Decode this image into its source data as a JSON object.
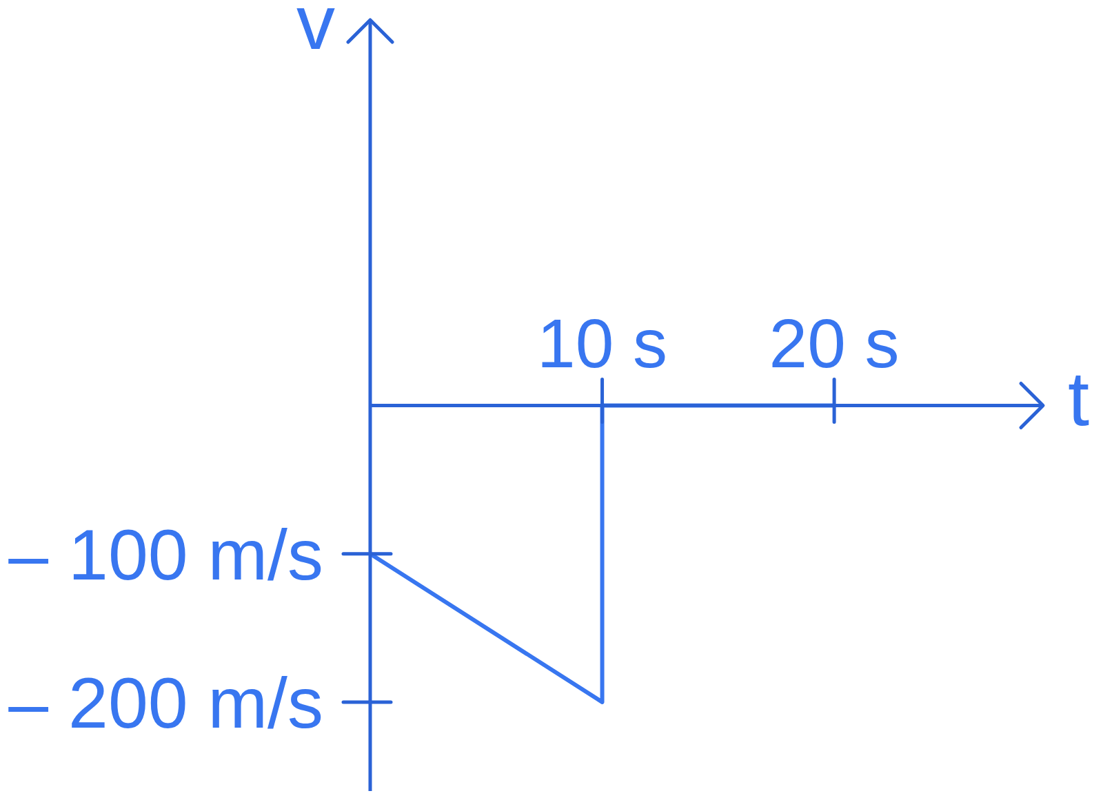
{
  "chart_data": {
    "type": "line",
    "xlabel": "t",
    "ylabel": "v",
    "x": [
      0,
      10,
      10,
      20
    ],
    "series": [
      {
        "color": "#3876f0",
        "values": [
          -100,
          -200,
          0,
          0
        ]
      }
    ],
    "xlim": [
      0,
      29
    ],
    "ylim": [
      -260,
      260
    ],
    "xticks": [
      {
        "value": 10,
        "label": "10 s"
      },
      {
        "value": 20,
        "label": "20 s"
      }
    ],
    "yticks": [
      {
        "value": -100,
        "label": "– 100 m/s"
      },
      {
        "value": -200,
        "label": "– 200 m/s"
      }
    ]
  }
}
